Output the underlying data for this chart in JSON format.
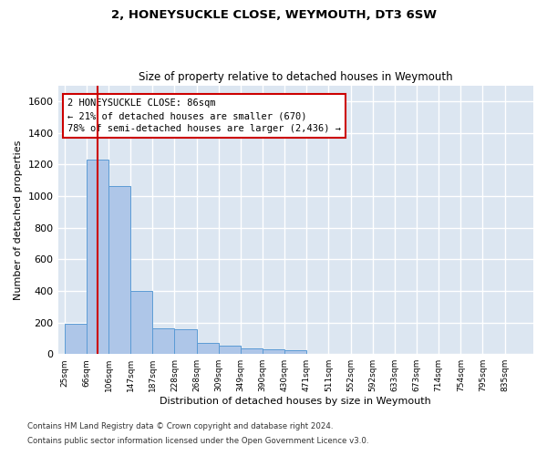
{
  "title1": "2, HONEYSUCKLE CLOSE, WEYMOUTH, DT3 6SW",
  "title2": "Size of property relative to detached houses in Weymouth",
  "xlabel": "Distribution of detached houses by size in Weymouth",
  "ylabel": "Number of detached properties",
  "categories": [
    "25sqm",
    "66sqm",
    "106sqm",
    "147sqm",
    "187sqm",
    "228sqm",
    "268sqm",
    "309sqm",
    "349sqm",
    "390sqm",
    "430sqm",
    "471sqm",
    "511sqm",
    "552sqm",
    "592sqm",
    "633sqm",
    "673sqm",
    "714sqm",
    "754sqm",
    "795sqm",
    "835sqm"
  ],
  "values": [
    193,
    1230,
    1065,
    402,
    160,
    155,
    68,
    55,
    38,
    30,
    22,
    0,
    0,
    0,
    0,
    0,
    0,
    0,
    0,
    0,
    0
  ],
  "bar_color": "#aec6e8",
  "bar_edge_color": "#5b9bd5",
  "background_color": "#dce6f1",
  "grid_color": "#ffffff",
  "property_line_color": "#cc0000",
  "annotation_text": "2 HONEYSUCKLE CLOSE: 86sqm\n← 21% of detached houses are smaller (670)\n78% of semi-detached houses are larger (2,436) →",
  "annotation_box_color": "#cc0000",
  "ylim": [
    0,
    1700
  ],
  "yticks": [
    0,
    200,
    400,
    600,
    800,
    1000,
    1200,
    1400,
    1600
  ],
  "footnote1": "Contains HM Land Registry data © Crown copyright and database right 2024.",
  "footnote2": "Contains public sector information licensed under the Open Government Licence v3.0."
}
